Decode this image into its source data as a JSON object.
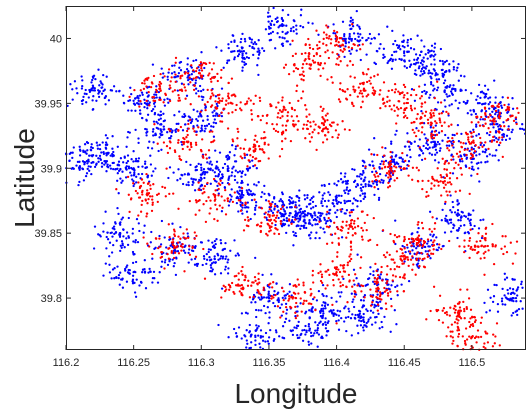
{
  "chart_data": {
    "type": "scatter",
    "title": "",
    "xlabel": "Longitude",
    "ylabel": "Latitude",
    "xlim": [
      116.2,
      116.54
    ],
    "ylim": [
      39.76,
      40.025
    ],
    "xticks": [
      116.2,
      116.25,
      116.3,
      116.35,
      116.4,
      116.45,
      116.5
    ],
    "xtick_labels": [
      "116.2",
      "116.25",
      "116.3",
      "116.35",
      "116.4",
      "116.45",
      "116.5"
    ],
    "yticks": [
      39.8,
      39.85,
      39.9,
      39.95,
      40.0
    ],
    "ytick_labels": [
      "39.8",
      "39.85",
      "39.9",
      "39.95",
      "40"
    ],
    "grid": false,
    "legend": "none",
    "series": [
      {
        "color": "#0000ff",
        "marker": "point",
        "x": [
          116.21,
          116.23,
          116.25,
          116.27,
          116.3,
          116.33,
          116.36,
          116.37,
          116.38,
          116.4,
          116.42,
          116.44,
          116.47,
          116.5,
          116.52,
          116.24,
          116.28,
          116.31,
          116.35,
          116.39,
          116.43,
          116.46,
          116.49,
          116.22,
          116.26,
          116.29,
          116.33,
          116.36,
          116.41,
          116.45,
          116.48,
          116.51,
          116.34,
          116.38,
          116.42,
          116.3,
          116.25,
          116.47,
          116.53,
          116.32
        ],
        "y": [
          39.905,
          39.91,
          39.9,
          39.93,
          39.895,
          39.88,
          39.87,
          39.865,
          39.86,
          39.875,
          39.89,
          39.905,
          39.92,
          39.91,
          39.93,
          39.85,
          39.84,
          39.83,
          39.8,
          39.79,
          39.81,
          39.84,
          39.86,
          39.96,
          39.95,
          39.97,
          39.99,
          40.01,
          40.0,
          39.99,
          39.96,
          39.95,
          39.77,
          39.775,
          39.785,
          39.94,
          39.82,
          39.98,
          39.8,
          39.9
        ]
      },
      {
        "color": "#ff0000",
        "marker": "point",
        "x": [
          116.27,
          116.3,
          116.32,
          116.36,
          116.38,
          116.4,
          116.42,
          116.45,
          116.47,
          116.5,
          116.52,
          116.29,
          116.34,
          116.39,
          116.44,
          116.48,
          116.26,
          116.31,
          116.35,
          116.41,
          116.46,
          116.51,
          116.33,
          116.37,
          116.43,
          116.49,
          116.28,
          116.4,
          116.45,
          116.5
        ],
        "y": [
          39.96,
          39.97,
          39.95,
          39.94,
          39.98,
          39.995,
          39.96,
          39.95,
          39.935,
          39.92,
          39.94,
          39.92,
          39.915,
          39.93,
          39.9,
          39.89,
          39.88,
          39.875,
          39.86,
          39.855,
          39.845,
          39.84,
          39.81,
          39.8,
          39.805,
          39.79,
          39.84,
          39.82,
          39.83,
          39.77
        ]
      }
    ]
  }
}
